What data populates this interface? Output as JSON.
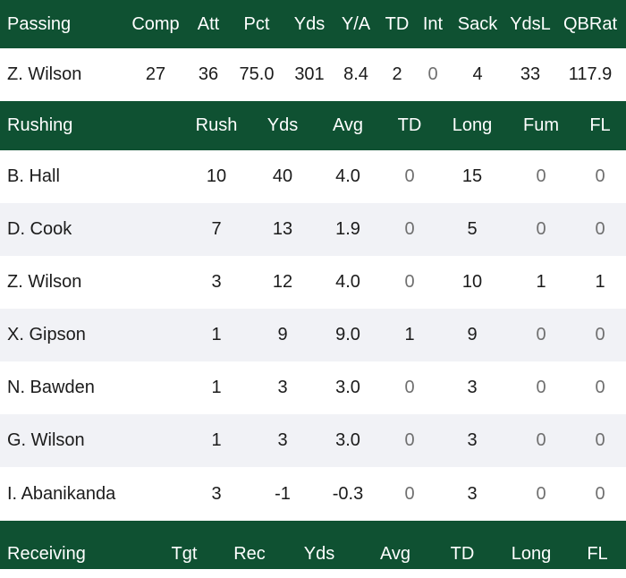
{
  "passing": {
    "headers": [
      "Passing",
      "Comp",
      "Att",
      "Pct",
      "Yds",
      "Y/A",
      "TD",
      "Int",
      "Sack",
      "YdsL",
      "QBRat"
    ],
    "rows": [
      [
        "Z. Wilson",
        "27",
        "36",
        "75.0",
        "301",
        "8.4",
        "2",
        "0",
        "4",
        "33",
        "117.9"
      ]
    ]
  },
  "rushing": {
    "headers": [
      "Rushing",
      "Rush",
      "Yds",
      "Avg",
      "TD",
      "Long",
      "Fum",
      "FL"
    ],
    "rows": [
      [
        "B. Hall",
        "10",
        "40",
        "4.0",
        "0",
        "15",
        "0",
        "0"
      ],
      [
        "D. Cook",
        "7",
        "13",
        "1.9",
        "0",
        "5",
        "0",
        "0"
      ],
      [
        "Z. Wilson",
        "3",
        "12",
        "4.0",
        "0",
        "10",
        "1",
        "1"
      ],
      [
        "X. Gipson",
        "1",
        "9",
        "9.0",
        "1",
        "9",
        "0",
        "0"
      ],
      [
        "N. Bawden",
        "1",
        "3",
        "3.0",
        "0",
        "3",
        "0",
        "0"
      ],
      [
        "G. Wilson",
        "1",
        "3",
        "3.0",
        "0",
        "3",
        "0",
        "0"
      ],
      [
        "I. Abanikanda",
        "3",
        "-1",
        "-0.3",
        "0",
        "3",
        "0",
        "0"
      ]
    ]
  },
  "receiving": {
    "headers": [
      "Receiving",
      "Tgt",
      "Rec",
      "Yds",
      "Avg",
      "TD",
      "Long",
      "FL"
    ]
  },
  "colors": {
    "header_bg": "#0f5132",
    "header_text": "#ffffff",
    "alt_row_bg": "#f1f2f6",
    "text": "#1b1b1b",
    "zero_text": "#6f6f6f"
  }
}
